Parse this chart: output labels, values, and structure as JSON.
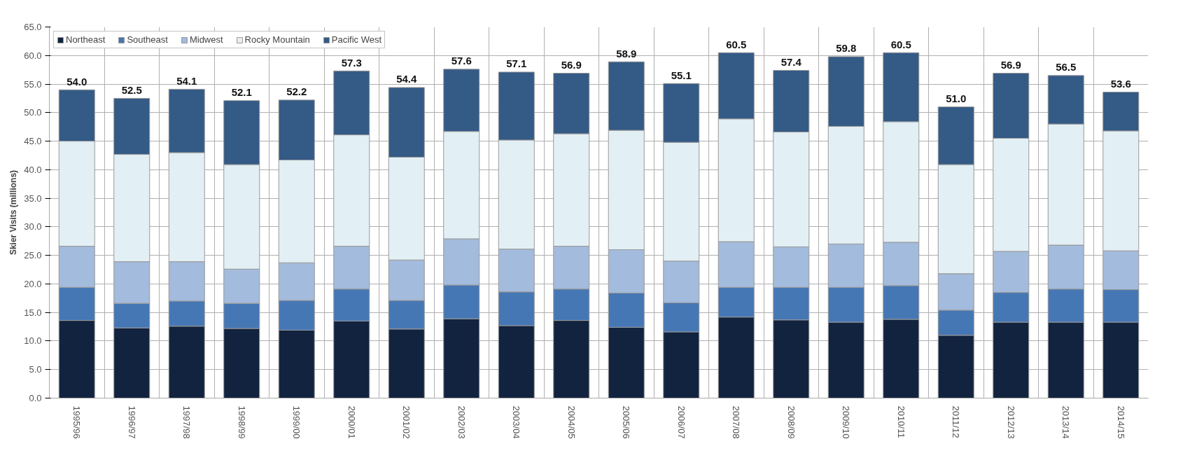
{
  "chart_data": {
    "type": "bar",
    "stacked": true,
    "ylabel": "Skier Visits (millions)",
    "categories": [
      "1995/96",
      "1996/97",
      "1997/98",
      "1998/99",
      "1999/00",
      "2000/01",
      "2001/02",
      "2002/03",
      "2003/04",
      "2004/05",
      "2005/06",
      "2006/07",
      "2007/08",
      "2008/09",
      "2009/10",
      "2010/11",
      "2011/12",
      "2012/13",
      "2013/14",
      "2014/15"
    ],
    "series": [
      {
        "name": "Northeast",
        "color": "#12233f",
        "values": [
          13.6,
          12.3,
          12.6,
          12.2,
          11.9,
          13.5,
          12.1,
          13.9,
          12.7,
          13.6,
          12.4,
          11.6,
          14.2,
          13.7,
          13.3,
          13.8,
          11.0,
          13.3,
          13.3,
          13.3
        ]
      },
      {
        "name": "Southeast",
        "color": "#4677b5",
        "values": [
          5.8,
          4.3,
          4.4,
          4.4,
          5.2,
          5.6,
          5.0,
          5.9,
          5.9,
          5.5,
          6.0,
          5.1,
          5.2,
          5.7,
          6.1,
          5.9,
          4.4,
          5.2,
          5.8,
          5.7
        ]
      },
      {
        "name": "Midwest",
        "color": "#a3bbdc",
        "values": [
          7.2,
          7.3,
          6.9,
          6.0,
          6.6,
          7.5,
          7.1,
          8.1,
          7.5,
          7.5,
          7.6,
          7.3,
          8.0,
          7.1,
          7.6,
          7.6,
          6.4,
          7.2,
          7.7,
          6.8
        ]
      },
      {
        "name": "Rocky Mountain",
        "color": "#e2f0f5",
        "values": [
          18.4,
          18.8,
          19.1,
          18.3,
          18.0,
          19.5,
          18.0,
          18.8,
          19.1,
          19.7,
          20.9,
          20.8,
          21.5,
          20.1,
          20.6,
          21.1,
          19.1,
          19.8,
          21.2,
          21.0
        ]
      },
      {
        "name": "Pacific West",
        "color": "#345a86",
        "values": [
          9.0,
          9.8,
          11.1,
          11.2,
          10.5,
          11.2,
          12.2,
          10.9,
          11.9,
          10.6,
          12.0,
          10.3,
          11.6,
          10.8,
          12.2,
          12.1,
          10.1,
          11.4,
          8.5,
          6.8
        ]
      }
    ],
    "totals": [
      "54.0",
      "52.5",
      "54.1",
      "52.1",
      "52.2",
      "57.3",
      "54.4",
      "57.6",
      "57.1",
      "56.9",
      "58.9",
      "55.1",
      "60.5",
      "57.4",
      "59.8",
      "60.5",
      "51.0",
      "56.9",
      "56.5",
      "53.6"
    ],
    "ylim": [
      0,
      65
    ],
    "yticks": [
      {
        "value": 0,
        "label": "0.0"
      },
      {
        "value": 5,
        "label": "5.0"
      },
      {
        "value": 10,
        "label": "10.0"
      },
      {
        "value": 15,
        "label": "15.0"
      },
      {
        "value": 20,
        "label": "20.0"
      },
      {
        "value": 25,
        "label": "25.0"
      },
      {
        "value": 30,
        "label": "30.0"
      },
      {
        "value": 35,
        "label": "35.0"
      },
      {
        "value": 40,
        "label": "40.0"
      },
      {
        "value": 45,
        "label": "45.0"
      },
      {
        "value": 50,
        "label": "50.0"
      },
      {
        "value": 55,
        "label": "55.0"
      },
      {
        "value": 60,
        "label": "60.0"
      },
      {
        "value": 65,
        "label": "65.0"
      }
    ],
    "grid": true,
    "legend": "top"
  }
}
